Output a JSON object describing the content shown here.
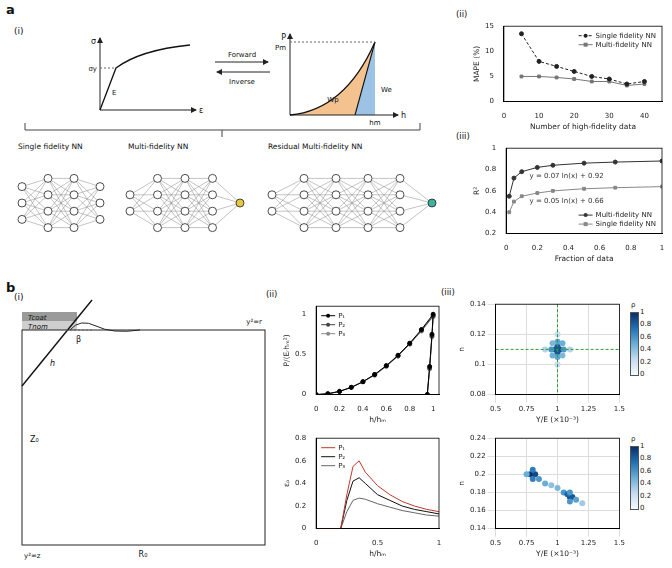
{
  "figure": {
    "panel_labels": [
      "a",
      "b"
    ],
    "a_i": {
      "label": "(i)",
      "stress_strain": {
        "x_label": "ε",
        "y_label": "σ",
        "labels": [
          "σy",
          "E"
        ]
      },
      "forward": "Forward",
      "inverse": "Inverse",
      "load_displacement": {
        "x_label": "h",
        "y_label": "P",
        "labels": [
          "Pm",
          "hm",
          "Wp",
          "We"
        ]
      },
      "networks": [
        "Single fidelity NN",
        "Multi-fidelity NN",
        "Residual Multi-fidelity NN"
      ]
    },
    "b_i": {
      "label": "(i)",
      "labels": {
        "coating": "Tcoat",
        "nominal": "Tnom",
        "angle": "β",
        "depth": "h",
        "height": "Z₀",
        "radius": "R₀",
        "axis_z": "y²=z",
        "axis_r": "y²=r"
      }
    }
  },
  "chart_data": [
    {
      "panel": "(ii)",
      "type": "line",
      "x_label": "Number of high-fidelity data",
      "y_label": "MAPE (%)",
      "xlim": [
        0,
        45
      ],
      "xticks": [
        0,
        10,
        20,
        30,
        40
      ],
      "ylim": [
        0,
        15
      ],
      "yticks": [
        0,
        5,
        10,
        15
      ],
      "grid": false,
      "legend": "upper right",
      "x": [
        5,
        10,
        15,
        20,
        25,
        30,
        35,
        40
      ],
      "series": [
        {
          "name": "Single fidelity NN",
          "color": "#222222",
          "marker": "circle",
          "line_style": "dashed",
          "values": [
            13.5,
            8,
            7,
            6,
            5,
            4.5,
            3.5,
            4
          ]
        },
        {
          "name": "Multi-fidelity NN",
          "color": "#777777",
          "marker": "square",
          "line_style": "solid",
          "values": [
            5,
            5,
            4.8,
            4.5,
            4,
            4,
            3.2,
            3.5
          ]
        }
      ]
    },
    {
      "panel": "(iii)",
      "type": "line",
      "x_label": "Fraction of data",
      "y_label": "R²",
      "xlim": [
        0,
        1
      ],
      "xticks": [
        0,
        0.2,
        0.4,
        0.6,
        0.8,
        1
      ],
      "ylim": [
        0.2,
        1
      ],
      "yticks": [
        0.2,
        0.4,
        0.6,
        0.8,
        1
      ],
      "grid": false,
      "legend": "lower right",
      "x": [
        0.02,
        0.05,
        0.1,
        0.2,
        0.3,
        0.5,
        0.7,
        1
      ],
      "series": [
        {
          "name": "Multi-fidelity NN",
          "color": "#333333",
          "marker": "circle",
          "line_style": "solid",
          "values": [
            0.55,
            0.72,
            0.78,
            0.82,
            0.84,
            0.86,
            0.87,
            0.88
          ]
        },
        {
          "name": "Single fidelity NN",
          "color": "#888888",
          "marker": "square",
          "line_style": "solid",
          "values": [
            0.4,
            0.5,
            0.55,
            0.58,
            0.6,
            0.62,
            0.63,
            0.64
          ]
        }
      ],
      "annotations": [
        {
          "text": "y = 0.07 ln(x) + 0.92",
          "x": 0.15,
          "y": 0.74
        },
        {
          "text": "y = 0.05 ln(x) + 0.66",
          "x": 0.15,
          "y": 0.5
        }
      ]
    },
    {
      "panel": "(ii)",
      "type": "line",
      "x_label": "h/hₘ",
      "y_label": "P/(Eᵣhₘ²)",
      "xlim": [
        0,
        1.05
      ],
      "xticks": [
        0,
        0.2,
        0.4,
        0.6,
        0.8,
        1
      ],
      "ylim": [
        0,
        1.1
      ],
      "yticks": [
        0,
        0.5,
        1
      ],
      "grid": false,
      "legend": "upper left",
      "x": [
        0,
        0.1,
        0.2,
        0.3,
        0.4,
        0.5,
        0.6,
        0.7,
        0.8,
        0.9,
        1,
        0.99,
        0.97,
        0.95
      ],
      "series": [
        {
          "name": "P₁",
          "color": "#000000",
          "marker": "circle",
          "line_style": "solid",
          "values": [
            0,
            0.01,
            0.04,
            0.09,
            0.16,
            0.25,
            0.36,
            0.49,
            0.64,
            0.81,
            1,
            0.75,
            0.35,
            0
          ]
        },
        {
          "name": "P₂",
          "color": "#444444",
          "marker": "circle",
          "line_style": "solid",
          "values": [
            0,
            0.01,
            0.04,
            0.09,
            0.16,
            0.25,
            0.36,
            0.48,
            0.63,
            0.8,
            0.98,
            0.73,
            0.33,
            0
          ]
        },
        {
          "name": "P₃",
          "color": "#888888",
          "marker": "circle",
          "line_style": "solid",
          "values": [
            0,
            0.01,
            0.04,
            0.09,
            0.16,
            0.24,
            0.35,
            0.48,
            0.63,
            0.79,
            0.97,
            0.72,
            0.32,
            0
          ]
        }
      ]
    },
    {
      "type": "line",
      "x_label": "h/hₘ",
      "y_label": "εₚ",
      "xlim": [
        0,
        1
      ],
      "xticks": [
        0,
        0.5,
        1
      ],
      "ylim": [
        0,
        0.8
      ],
      "yticks": [
        0,
        0.2,
        0.4,
        0.6,
        0.8
      ],
      "grid": false,
      "legend": "upper left",
      "x": [
        0,
        0.2,
        0.25,
        0.3,
        0.35,
        0.4,
        0.5,
        0.6,
        0.7,
        0.8,
        0.9,
        1
      ],
      "series": [
        {
          "name": "P₁",
          "color": "#c0392b",
          "marker": "none",
          "line_style": "solid",
          "values": [
            0,
            0,
            0.3,
            0.55,
            0.6,
            0.5,
            0.38,
            0.3,
            0.24,
            0.2,
            0.17,
            0.15
          ]
        },
        {
          "name": "P₂",
          "color": "#111111",
          "marker": "none",
          "line_style": "solid",
          "values": [
            0,
            0,
            0.25,
            0.42,
            0.45,
            0.4,
            0.3,
            0.25,
            0.2,
            0.17,
            0.15,
            0.13
          ]
        },
        {
          "name": "P₃",
          "color": "#666666",
          "marker": "none",
          "line_style": "solid",
          "values": [
            0,
            0,
            0.15,
            0.25,
            0.27,
            0.26,
            0.22,
            0.19,
            0.16,
            0.14,
            0.12,
            0.11
          ]
        }
      ]
    },
    {
      "panel": "(iii)",
      "type": "scatter",
      "x_label": "Y/E (×10⁻³)",
      "y_label": "n",
      "xlim": [
        0.5,
        1.5
      ],
      "xticks": [
        0.5,
        0.75,
        1,
        1.25,
        1.5
      ],
      "ylim": [
        0.08,
        0.14
      ],
      "yticks": [
        0.08,
        0.1,
        0.12,
        0.14
      ],
      "grid": true,
      "x": [
        1,
        0.98,
        1.02,
        1,
        1,
        0.95,
        1.05,
        1,
        1,
        0.9,
        1.1,
        1,
        1,
        0.96,
        1.04,
        0.96,
        1.04
      ],
      "values": [
        0.11,
        0.11,
        0.11,
        0.108,
        0.112,
        0.11,
        0.11,
        0.105,
        0.115,
        0.11,
        0.11,
        0.1,
        0.12,
        0.106,
        0.114,
        0.114,
        0.106
      ],
      "density": [
        1,
        0.9,
        0.9,
        0.85,
        0.85,
        0.6,
        0.6,
        0.55,
        0.55,
        0.3,
        0.3,
        0.25,
        0.25,
        0.5,
        0.5,
        0.45,
        0.45
      ],
      "target": {
        "x": 1,
        "y": 0.11
      },
      "colorbar": {
        "title": "ρ",
        "range": [
          0,
          1
        ],
        "ticks": [
          0,
          0.2,
          0.4,
          0.6,
          0.8,
          1
        ]
      }
    },
    {
      "type": "scatter",
      "x_label": "Y/E (×10⁻³)",
      "y_label": "n",
      "xlim": [
        0.5,
        1.5
      ],
      "xticks": [
        0.5,
        0.75,
        1,
        1.25,
        1.5
      ],
      "ylim": [
        0.14,
        0.24
      ],
      "yticks": [
        0.14,
        0.16,
        0.18,
        0.2,
        0.22,
        0.24
      ],
      "grid": true,
      "x": [
        0.78,
        0.8,
        0.82,
        0.8,
        0.8,
        0.75,
        0.85,
        0.9,
        0.95,
        1,
        1.05,
        1.1,
        1.12,
        1.08,
        1.1,
        1.15,
        1.2,
        1.1
      ],
      "values": [
        0.2,
        0.2,
        0.2,
        0.205,
        0.195,
        0.2,
        0.195,
        0.19,
        0.188,
        0.185,
        0.18,
        0.175,
        0.175,
        0.178,
        0.17,
        0.172,
        0.168,
        0.18
      ],
      "density": [
        0.9,
        1,
        0.9,
        0.7,
        0.7,
        0.5,
        0.6,
        0.5,
        0.4,
        0.45,
        0.6,
        0.9,
        0.85,
        0.8,
        0.6,
        0.55,
        0.35,
        0.6
      ],
      "colorbar": {
        "title": "ρ",
        "range": [
          0,
          1
        ],
        "ticks": [
          0,
          0.2,
          0.4,
          0.6,
          0.8,
          1
        ]
      }
    }
  ]
}
